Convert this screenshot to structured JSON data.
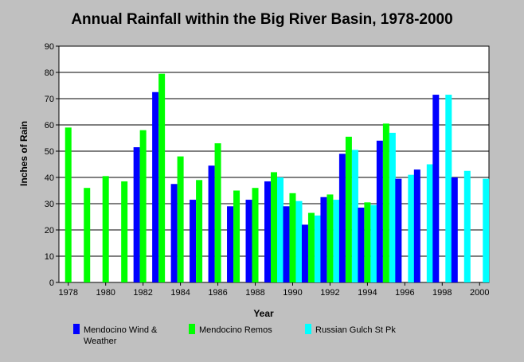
{
  "chart_data": {
    "type": "bar",
    "title": "Annual Rainfall within the Big River Basin, 1978-2000",
    "xlabel": "Year",
    "ylabel": "Inches of Rain",
    "ylim": [
      0,
      90
    ],
    "yticks": [
      0,
      10,
      20,
      30,
      40,
      50,
      60,
      70,
      80,
      90
    ],
    "x": [
      1978,
      1979,
      1980,
      1981,
      1982,
      1983,
      1984,
      1985,
      1986,
      1987,
      1988,
      1989,
      1990,
      1991,
      1992,
      1993,
      1994,
      1995,
      1996,
      1997,
      1998,
      1999,
      2000
    ],
    "xticks": [
      "1978",
      "1980",
      "1982",
      "1984",
      "1986",
      "1988",
      "1990",
      "1992",
      "1994",
      "1996",
      "1998",
      "2000"
    ],
    "grid": "horizontal",
    "legend_position": "bottom",
    "series": [
      {
        "name": "Mendocino Wind & Weather",
        "color": "#0000ff",
        "values": [
          null,
          null,
          null,
          null,
          51.5,
          72.5,
          37.5,
          31.5,
          44.5,
          29,
          31.5,
          38.5,
          29,
          22,
          32.5,
          49,
          28.5,
          54,
          39.5,
          43,
          71.5,
          40,
          null
        ]
      },
      {
        "name": "Mendocino Remos",
        "color": "#00ff00",
        "values": [
          59,
          36,
          40.5,
          38.5,
          58,
          79.5,
          48,
          39,
          53,
          35,
          36,
          42,
          34,
          26.5,
          33.5,
          55.5,
          30.5,
          60.5,
          null,
          null,
          null,
          null,
          null
        ]
      },
      {
        "name": "Russian Gulch St Pk",
        "color": "#00ffff",
        "values": [
          null,
          null,
          null,
          null,
          null,
          null,
          null,
          null,
          null,
          null,
          null,
          40,
          31,
          25.5,
          31.5,
          50.5,
          29.5,
          57,
          41,
          45,
          71.5,
          42.5,
          39.5
        ]
      }
    ]
  }
}
